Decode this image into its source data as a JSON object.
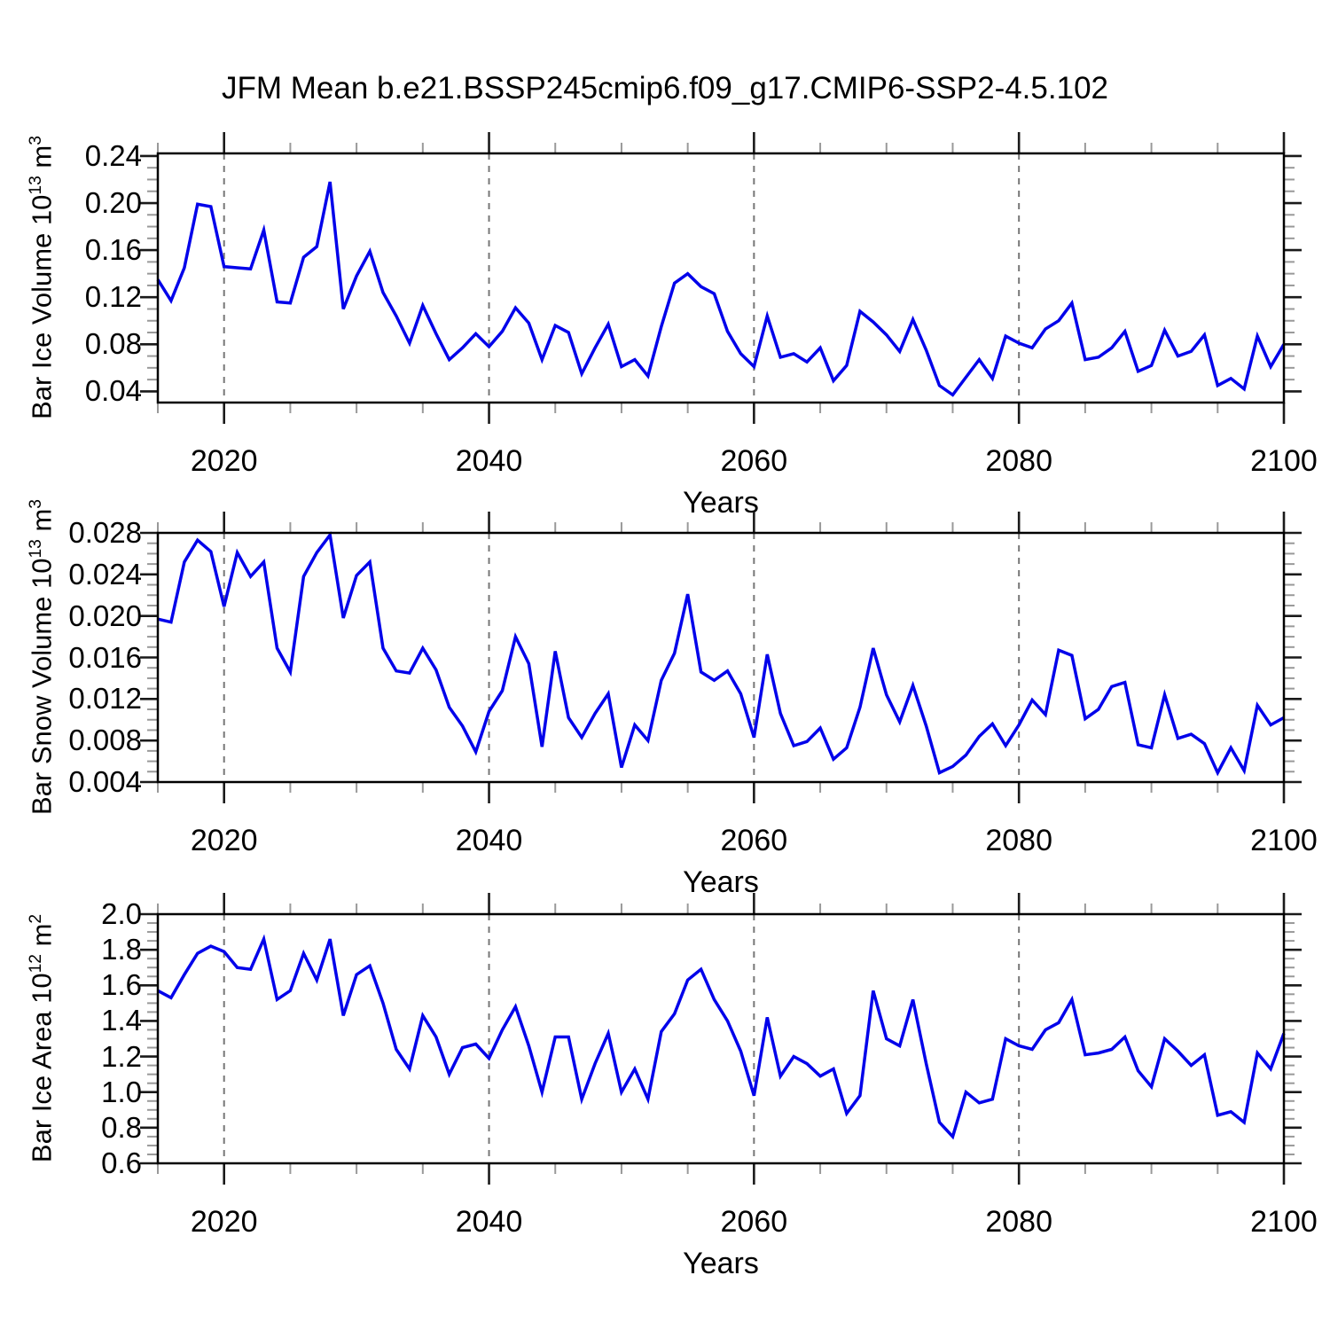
{
  "title": "JFM Mean b.e21.BSSP245cmip6.f09_g17.CMIP6-SSP2-4.5.102",
  "chart_data": {
    "type": "line",
    "title": "JFM Mean b.e21.BSSP245cmip6.f09_g17.CMIP6-SSP2-4.5.102",
    "line_color": "#0202EA",
    "grid_color": "#777777",
    "grid": "vertical-dashed-at-major-x-ticks",
    "legend": "none",
    "x": [
      2015,
      2016,
      2017,
      2018,
      2019,
      2020,
      2021,
      2022,
      2023,
      2024,
      2025,
      2026,
      2027,
      2028,
      2029,
      2030,
      2031,
      2032,
      2033,
      2034,
      2035,
      2036,
      2037,
      2038,
      2039,
      2040,
      2041,
      2042,
      2043,
      2044,
      2045,
      2046,
      2047,
      2048,
      2049,
      2050,
      2051,
      2052,
      2053,
      2054,
      2055,
      2056,
      2057,
      2058,
      2059,
      2060,
      2061,
      2062,
      2063,
      2064,
      2065,
      2066,
      2067,
      2068,
      2069,
      2070,
      2071,
      2072,
      2073,
      2074,
      2075,
      2076,
      2077,
      2078,
      2079,
      2080,
      2081,
      2082,
      2083,
      2084,
      2085,
      2086,
      2087,
      2088,
      2089,
      2090,
      2091,
      2092,
      2093,
      2094,
      2095,
      2096,
      2097,
      2098,
      2099,
      2100
    ],
    "x_axis": {
      "label": "Years",
      "range": [
        2015,
        2100
      ],
      "major_ticks": [
        2020,
        2040,
        2060,
        2080,
        2100
      ],
      "minor_step": 5,
      "gridlines_at": [
        2020,
        2040,
        2060,
        2080
      ]
    },
    "panels": [
      {
        "name": "bar-ice-volume",
        "ylabel": {
          "pre": "Bar Ice Volume 10",
          "exp": "13",
          "mid": " m",
          "exp2": "3"
        },
        "ylim": [
          0.0305,
          0.2422
        ],
        "major_ticks": [
          0.04,
          0.08,
          0.12,
          0.16,
          0.2,
          0.24
        ],
        "minor_step": 0.01,
        "tick_decimals": 2,
        "values": [
          0.135,
          0.117,
          0.145,
          0.199,
          0.197,
          0.146,
          0.145,
          0.144,
          0.177,
          0.116,
          0.115,
          0.154,
          0.163,
          0.218,
          0.11,
          0.138,
          0.159,
          0.124,
          0.104,
          0.081,
          0.113,
          0.089,
          0.067,
          0.077,
          0.089,
          0.078,
          0.091,
          0.111,
          0.098,
          0.067,
          0.096,
          0.09,
          0.055,
          0.077,
          0.097,
          0.061,
          0.067,
          0.053,
          0.095,
          0.132,
          0.14,
          0.129,
          0.123,
          0.091,
          0.072,
          0.061,
          0.104,
          0.069,
          0.072,
          0.065,
          0.077,
          0.049,
          0.062,
          0.108,
          0.099,
          0.088,
          0.074,
          0.101,
          0.075,
          0.045,
          0.037,
          0.052,
          0.067,
          0.051,
          0.087,
          0.081,
          0.077,
          0.093,
          0.1,
          0.115,
          0.067,
          0.069,
          0.077,
          0.091,
          0.057,
          0.062,
          0.092,
          0.07,
          0.074,
          0.088,
          0.045,
          0.051,
          0.042,
          0.087,
          0.061,
          0.08
        ]
      },
      {
        "name": "bar-snow-volume",
        "ylabel": {
          "pre": "Bar Snow Volume 10",
          "exp": "13",
          "mid": " m",
          "exp2": "3"
        },
        "ylim": [
          0.004,
          0.028
        ],
        "major_ticks": [
          0.004,
          0.008,
          0.012,
          0.016,
          0.02,
          0.024,
          0.028
        ],
        "minor_step": 0.001,
        "tick_decimals": 3,
        "values": [
          0.0197,
          0.0194,
          0.0252,
          0.0273,
          0.0262,
          0.0209,
          0.0261,
          0.0238,
          0.0252,
          0.0169,
          0.0146,
          0.0238,
          0.0261,
          0.0278,
          0.0198,
          0.0239,
          0.0252,
          0.0169,
          0.0147,
          0.0145,
          0.0169,
          0.0148,
          0.0112,
          0.0094,
          0.0069,
          0.0108,
          0.0128,
          0.018,
          0.0154,
          0.0074,
          0.0166,
          0.0102,
          0.0083,
          0.0106,
          0.0125,
          0.0054,
          0.0095,
          0.008,
          0.0138,
          0.0164,
          0.0221,
          0.0146,
          0.0138,
          0.0147,
          0.0125,
          0.0083,
          0.0163,
          0.0106,
          0.0075,
          0.0079,
          0.0092,
          0.0062,
          0.0073,
          0.0112,
          0.0169,
          0.0124,
          0.0098,
          0.0133,
          0.0094,
          0.0049,
          0.0055,
          0.0066,
          0.0084,
          0.0096,
          0.0075,
          0.0095,
          0.0119,
          0.0105,
          0.0167,
          0.0162,
          0.0101,
          0.011,
          0.0132,
          0.0136,
          0.0076,
          0.0073,
          0.0124,
          0.0082,
          0.0086,
          0.0077,
          0.0049,
          0.0073,
          0.0051,
          0.0114,
          0.0095,
          0.0102
        ]
      },
      {
        "name": "bar-ice-area",
        "ylabel": {
          "pre": "Bar Ice Area 10",
          "exp": "12",
          "mid": " m",
          "exp2": "2"
        },
        "ylim": [
          0.6,
          2.0
        ],
        "major_ticks": [
          0.6,
          0.8,
          1.0,
          1.2,
          1.4,
          1.6,
          1.8,
          2.0
        ],
        "minor_step": 0.05,
        "tick_decimals": 1,
        "values": [
          1.57,
          1.53,
          1.66,
          1.78,
          1.82,
          1.79,
          1.7,
          1.69,
          1.86,
          1.52,
          1.57,
          1.78,
          1.63,
          1.86,
          1.43,
          1.66,
          1.71,
          1.5,
          1.24,
          1.13,
          1.43,
          1.31,
          1.1,
          1.25,
          1.27,
          1.19,
          1.35,
          1.48,
          1.26,
          1.0,
          1.31,
          1.31,
          0.96,
          1.16,
          1.33,
          1.0,
          1.13,
          0.96,
          1.34,
          1.44,
          1.63,
          1.69,
          1.52,
          1.4,
          1.23,
          0.98,
          1.42,
          1.09,
          1.2,
          1.16,
          1.09,
          1.13,
          0.88,
          0.98,
          1.57,
          1.3,
          1.26,
          1.52,
          1.16,
          0.83,
          0.75,
          1.0,
          0.94,
          0.96,
          1.3,
          1.26,
          1.24,
          1.35,
          1.39,
          1.52,
          1.21,
          1.22,
          1.24,
          1.31,
          1.12,
          1.03,
          1.3,
          1.23,
          1.15,
          1.21,
          0.87,
          0.89,
          0.83,
          1.22,
          1.13,
          1.33
        ]
      }
    ]
  }
}
